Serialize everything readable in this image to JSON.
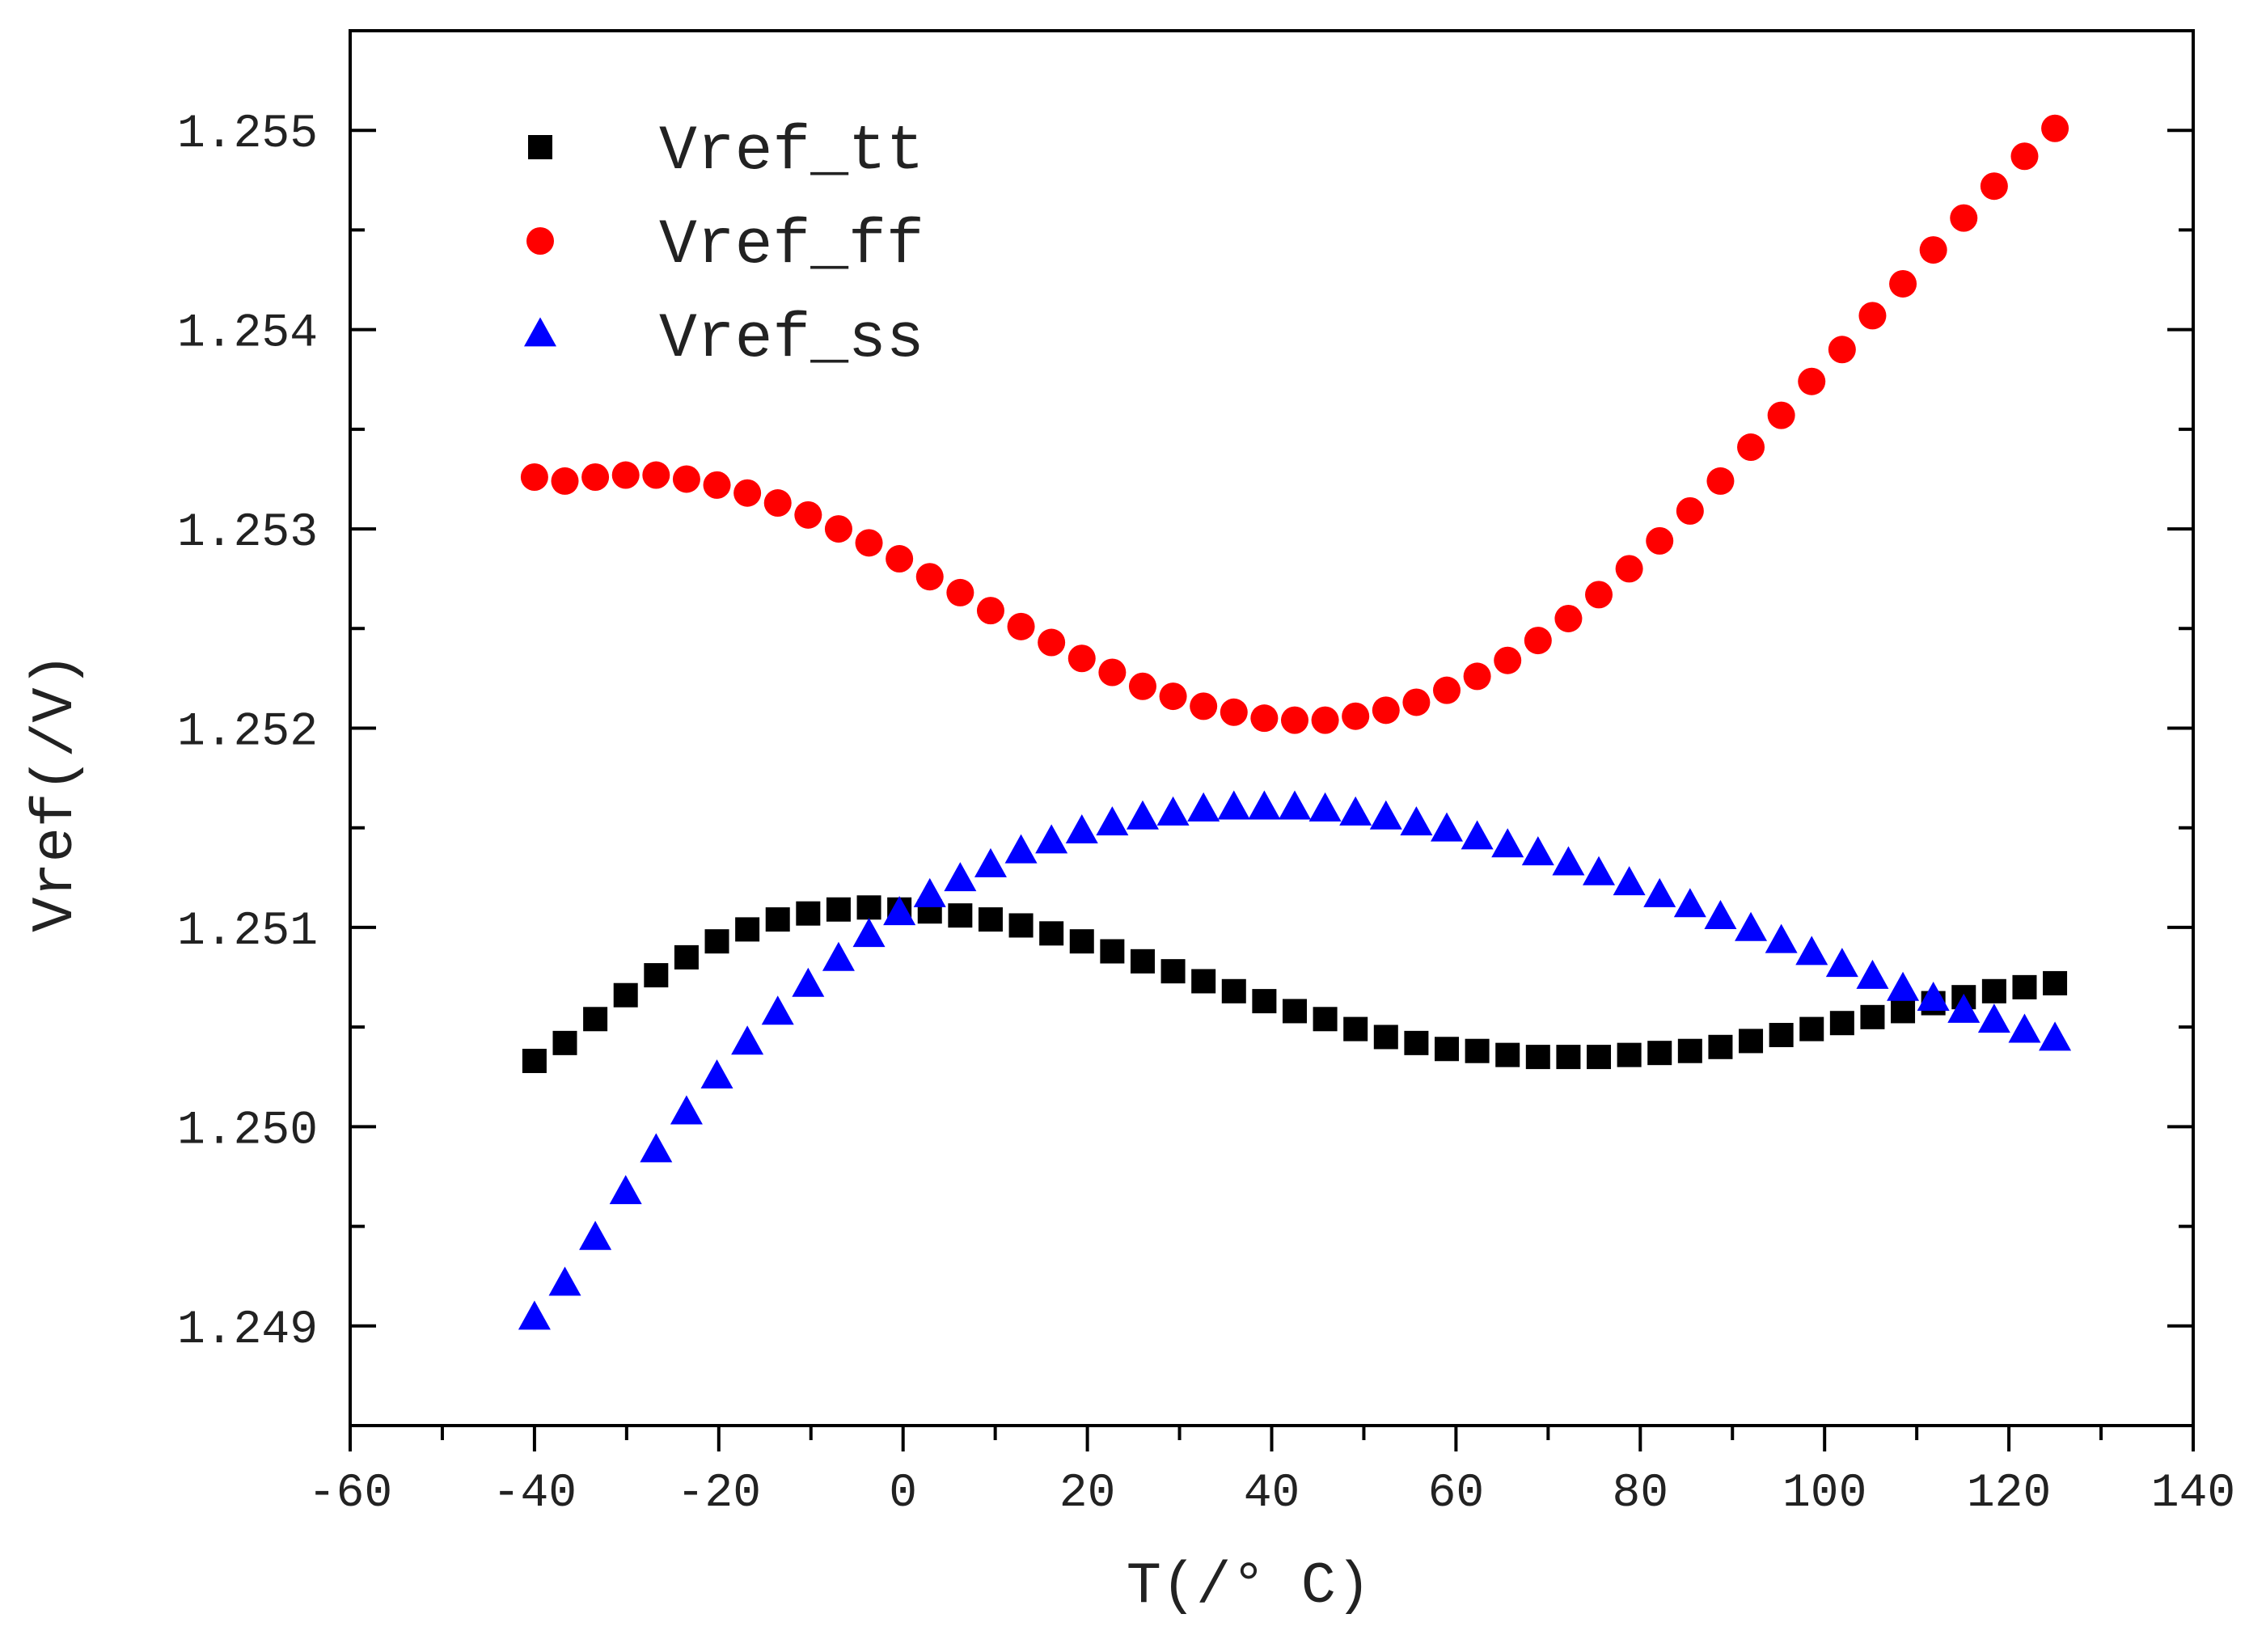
{
  "chart_data": {
    "type": "scatter",
    "title": "",
    "xlabel": "T(/° C)",
    "ylabel": "Vref(/V)",
    "xlim": [
      -60,
      140
    ],
    "ylim": [
      1.2485,
      1.2555
    ],
    "x_ticks": [
      -60,
      -40,
      -20,
      0,
      20,
      40,
      60,
      80,
      100,
      120,
      140
    ],
    "x_tick_labels": [
      "-60",
      "-40",
      "-20",
      "0",
      "20",
      "40",
      "60",
      "80",
      "100",
      "120",
      "140"
    ],
    "y_ticks": [
      1.249,
      1.25,
      1.251,
      1.252,
      1.253,
      1.254,
      1.255
    ],
    "y_tick_labels": [
      "1.249",
      "1.250",
      "1.251",
      "1.252",
      "1.253",
      "1.254",
      "1.255"
    ],
    "grid": false,
    "legend_position": "top-left",
    "series": [
      {
        "name": "Vref_tt",
        "marker": "square",
        "color": "#000000",
        "x": [
          -40,
          -36.7,
          -33.4,
          -30.1,
          -26.8,
          -23.5,
          -20.2,
          -16.9,
          -13.6,
          -10.3,
          -7,
          -3.7,
          -0.4,
          2.9,
          6.2,
          9.5,
          12.8,
          16.1,
          19.4,
          22.7,
          26,
          29.3,
          32.6,
          35.9,
          39.2,
          42.5,
          45.8,
          49.1,
          52.4,
          55.7,
          59,
          62.3,
          65.6,
          68.9,
          72.2,
          75.5,
          78.8,
          82.1,
          85.4,
          88.7,
          92,
          95.3,
          98.6,
          101.9,
          105.2,
          108.5,
          111.8,
          115.1,
          118.4,
          121.7,
          125
        ],
        "y": [
          1.25033,
          1.25042,
          1.25054,
          1.25066,
          1.25076,
          1.25085,
          1.25093,
          1.25099,
          1.25104,
          1.25107,
          1.25109,
          1.2511,
          1.25109,
          1.25108,
          1.25106,
          1.25104,
          1.25101,
          1.25097,
          1.25093,
          1.25088,
          1.25083,
          1.25078,
          1.25073,
          1.25068,
          1.25063,
          1.25058,
          1.25054,
          1.25049,
          1.25045,
          1.25042,
          1.25039,
          1.25038,
          1.25036,
          1.25035,
          1.25035,
          1.25035,
          1.25036,
          1.25037,
          1.25038,
          1.2504,
          1.25043,
          1.25046,
          1.25049,
          1.25052,
          1.25055,
          1.25058,
          1.25062,
          1.25065,
          1.25068,
          1.2507,
          1.25072
        ]
      },
      {
        "name": "Vref_ff",
        "marker": "circle",
        "color": "#ff0000",
        "x": [
          -40,
          -36.7,
          -33.4,
          -30.1,
          -26.8,
          -23.5,
          -20.2,
          -16.9,
          -13.6,
          -10.3,
          -7,
          -3.7,
          -0.4,
          2.9,
          6.2,
          9.5,
          12.8,
          16.1,
          19.4,
          22.7,
          26,
          29.3,
          32.6,
          35.9,
          39.2,
          42.5,
          45.8,
          49.1,
          52.4,
          55.7,
          59,
          62.3,
          65.6,
          68.9,
          72.2,
          75.5,
          78.8,
          82.1,
          85.4,
          88.7,
          92,
          95.3,
          98.6,
          101.9,
          105.2,
          108.5,
          111.8,
          115.1,
          118.4,
          121.7,
          125
        ],
        "y": [
          1.25326,
          1.25324,
          1.25326,
          1.25327,
          1.25327,
          1.25325,
          1.25322,
          1.25318,
          1.25313,
          1.25307,
          1.253,
          1.25293,
          1.25285,
          1.25276,
          1.25268,
          1.25259,
          1.25251,
          1.25243,
          1.25235,
          1.25228,
          1.25221,
          1.25216,
          1.25211,
          1.25208,
          1.25205,
          1.25204,
          1.25204,
          1.25206,
          1.25209,
          1.25213,
          1.25219,
          1.25226,
          1.25234,
          1.25244,
          1.25255,
          1.25267,
          1.2528,
          1.25294,
          1.25309,
          1.25324,
          1.25341,
          1.25357,
          1.25374,
          1.2539,
          1.25407,
          1.25423,
          1.2544,
          1.25456,
          1.25472,
          1.25487,
          1.25501
        ]
      },
      {
        "name": "Vref_ss",
        "marker": "triangle",
        "color": "#0000ff",
        "x": [
          -40,
          -36.7,
          -33.4,
          -30.1,
          -26.8,
          -23.5,
          -20.2,
          -16.9,
          -13.6,
          -10.3,
          -7,
          -3.7,
          -0.4,
          2.9,
          6.2,
          9.5,
          12.8,
          16.1,
          19.4,
          22.7,
          26,
          29.3,
          32.6,
          35.9,
          39.2,
          42.5,
          45.8,
          49.1,
          52.4,
          55.7,
          59,
          62.3,
          65.6,
          68.9,
          72.2,
          75.5,
          78.8,
          82.1,
          85.4,
          88.7,
          92,
          95.3,
          98.6,
          101.9,
          105.2,
          108.5,
          111.8,
          115.1,
          118.4,
          121.7,
          125
        ],
        "y": [
          1.24904,
          1.24921,
          1.24944,
          1.24967,
          1.24988,
          1.25007,
          1.25025,
          1.25042,
          1.25057,
          1.25071,
          1.25084,
          1.25096,
          1.25107,
          1.25116,
          1.25124,
          1.25131,
          1.25138,
          1.25143,
          1.25148,
          1.25152,
          1.25155,
          1.25157,
          1.25159,
          1.2516,
          1.2516,
          1.2516,
          1.25159,
          1.25157,
          1.25155,
          1.25152,
          1.25149,
          1.25145,
          1.25141,
          1.25137,
          1.25132,
          1.25127,
          1.25122,
          1.25116,
          1.25111,
          1.25105,
          1.25099,
          1.25093,
          1.25087,
          1.25081,
          1.25075,
          1.25069,
          1.25064,
          1.25058,
          1.25053,
          1.25048,
          1.25044
        ]
      }
    ]
  }
}
